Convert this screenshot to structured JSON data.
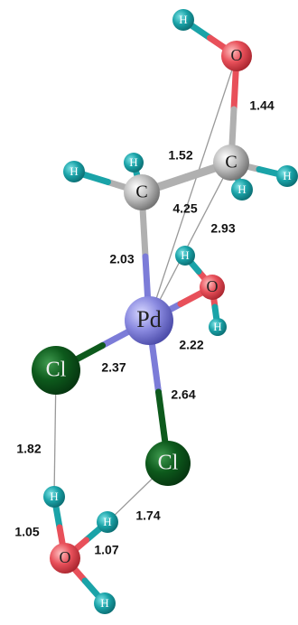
{
  "atoms": [
    {
      "label": "H"
    },
    {
      "label": "O"
    },
    {
      "label": "C"
    },
    {
      "label": "H"
    },
    {
      "label": "H"
    },
    {
      "label": "C"
    },
    {
      "label": "H"
    },
    {
      "label": "H"
    },
    {
      "label": "H"
    },
    {
      "label": "O"
    },
    {
      "label": "H"
    },
    {
      "label": "Pd"
    },
    {
      "label": "Cl"
    },
    {
      "label": "Cl"
    },
    {
      "label": "H"
    },
    {
      "label": "H"
    },
    {
      "label": "O"
    },
    {
      "label": "H"
    }
  ],
  "bond_labels": [
    "1.44",
    "1.52",
    "4.25",
    "2.93",
    "2.03",
    "2.22",
    "2.37",
    "2.64",
    "1.82",
    "1.74",
    "1.05",
    "1.07"
  ]
}
